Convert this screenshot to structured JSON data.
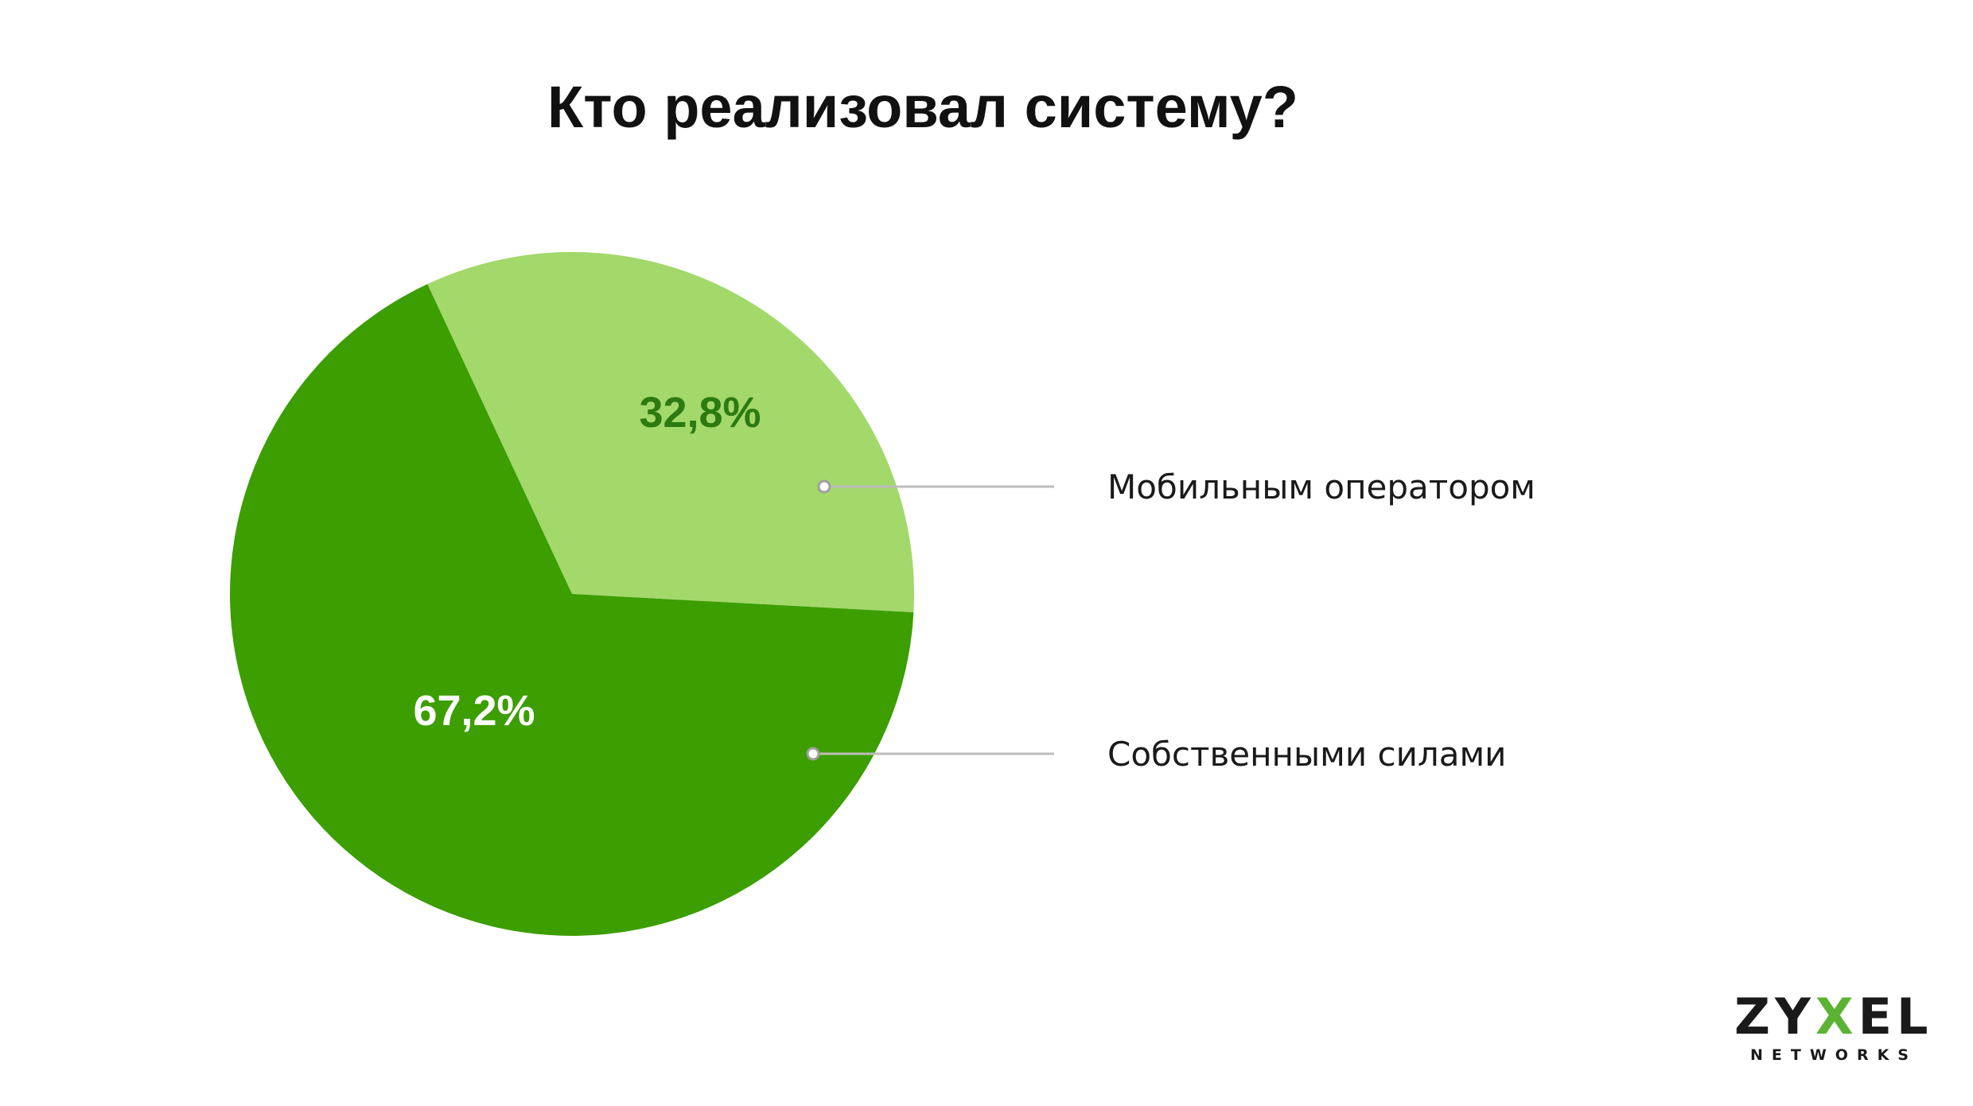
{
  "chart_data": {
    "type": "pie",
    "title": "Кто реализовал систему?",
    "slices": [
      {
        "label": "Мобильным оператором",
        "value": 32.8,
        "value_label": "32,8%",
        "color": "#a3d86b",
        "label_color": "#2d7a10"
      },
      {
        "label": "Собственными силами",
        "value": 67.2,
        "value_label": "67,2%",
        "color": "#3c9e00",
        "label_color": "#ffffff"
      }
    ],
    "legend_placement": "right"
  },
  "logo": {
    "brand": "ZYXEL",
    "sub": "NETWORKS",
    "accent": "#5bb333"
  }
}
